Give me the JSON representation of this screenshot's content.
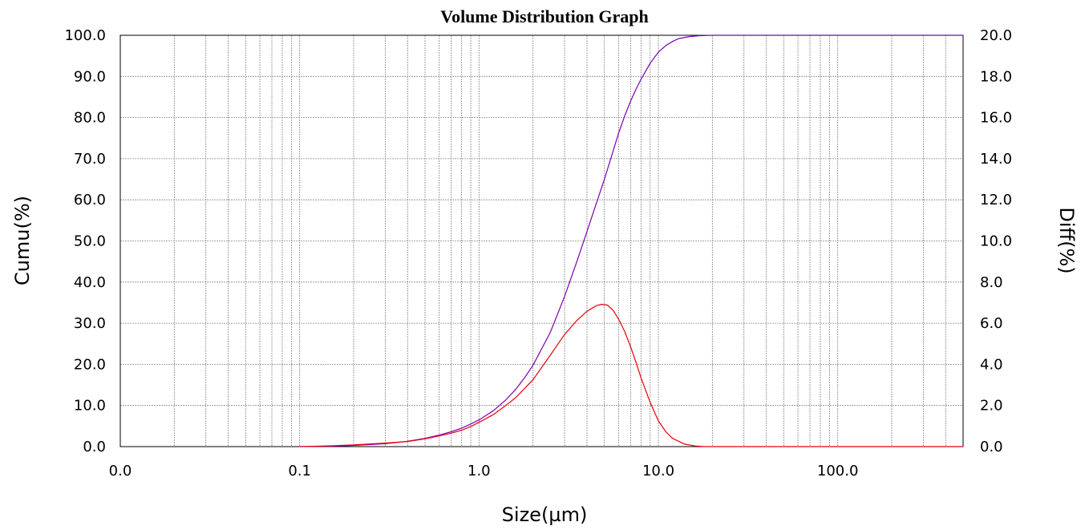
{
  "chart_data": {
    "type": "line",
    "title": "Volume Distribution Graph",
    "xlabel": "Size(µm)",
    "ylabel_left": "Cumu(%)",
    "ylabel_right": "Diff(%)",
    "x_scale": "log",
    "x_ticks": [
      "0.0",
      "0.1",
      "1.0",
      "10.0",
      "100.0"
    ],
    "y_left_ticks": [
      "0.0",
      "10.0",
      "20.0",
      "30.0",
      "40.0",
      "50.0",
      "60.0",
      "70.0",
      "80.0",
      "90.0",
      "100.0"
    ],
    "y_right_ticks": [
      "0.0",
      "2.0",
      "4.0",
      "6.0",
      "8.0",
      "10.0",
      "12.0",
      "14.0",
      "16.0",
      "18.0",
      "20.0"
    ],
    "xlim": [
      0.01,
      500
    ],
    "ylim_left": [
      0,
      100
    ],
    "ylim_right": [
      0,
      20
    ],
    "grid": true,
    "legend": "none",
    "series": [
      {
        "axis": "left",
        "color": "#7B00B4",
        "x": [
          0.1,
          0.15,
          0.2,
          0.3,
          0.4,
          0.5,
          0.6,
          0.7,
          0.8,
          0.9,
          1.0,
          1.2,
          1.4,
          1.6,
          1.8,
          2.0,
          2.5,
          3.0,
          3.5,
          4.0,
          4.5,
          5.0,
          5.5,
          6.0,
          6.5,
          7.0,
          7.5,
          8.0,
          9.0,
          10.0,
          11.0,
          12.0,
          13.0,
          15.0,
          17.0,
          20.0,
          50.0,
          100.0,
          500.0
        ],
        "y": [
          0.0,
          0.1,
          0.3,
          0.7,
          1.3,
          2.0,
          2.8,
          3.6,
          4.5,
          5.5,
          6.5,
          8.7,
          11.2,
          13.9,
          16.8,
          19.8,
          27.8,
          36.5,
          44.8,
          52.3,
          59.0,
          65.0,
          70.8,
          76.2,
          80.5,
          84.0,
          86.9,
          89.3,
          93.2,
          95.9,
          97.5,
          98.5,
          99.2,
          99.7,
          99.9,
          100.0,
          100.0,
          100.0,
          100.0
        ]
      },
      {
        "axis": "right",
        "color": "#E8000B",
        "x": [
          0.1,
          0.15,
          0.2,
          0.3,
          0.4,
          0.5,
          0.6,
          0.7,
          0.8,
          0.9,
          1.0,
          1.2,
          1.4,
          1.6,
          2.0,
          2.5,
          3.0,
          3.5,
          4.0,
          4.5,
          4.8,
          5.2,
          5.6,
          6.0,
          6.5,
          7.0,
          7.5,
          8.0,
          9.0,
          10.0,
          11.0,
          12.0,
          14.0,
          16.0,
          18.0,
          20.0,
          50.0,
          100.0,
          500.0
        ],
        "y": [
          0.0,
          0.04,
          0.08,
          0.17,
          0.25,
          0.38,
          0.52,
          0.65,
          0.8,
          0.98,
          1.18,
          1.55,
          1.98,
          2.38,
          3.25,
          4.45,
          5.45,
          6.12,
          6.58,
          6.85,
          6.92,
          6.88,
          6.62,
          6.2,
          5.58,
          4.85,
          4.1,
          3.35,
          2.15,
          1.25,
          0.72,
          0.4,
          0.12,
          0.03,
          0.0,
          0.0,
          0.0,
          0.0,
          0.0
        ]
      }
    ]
  }
}
